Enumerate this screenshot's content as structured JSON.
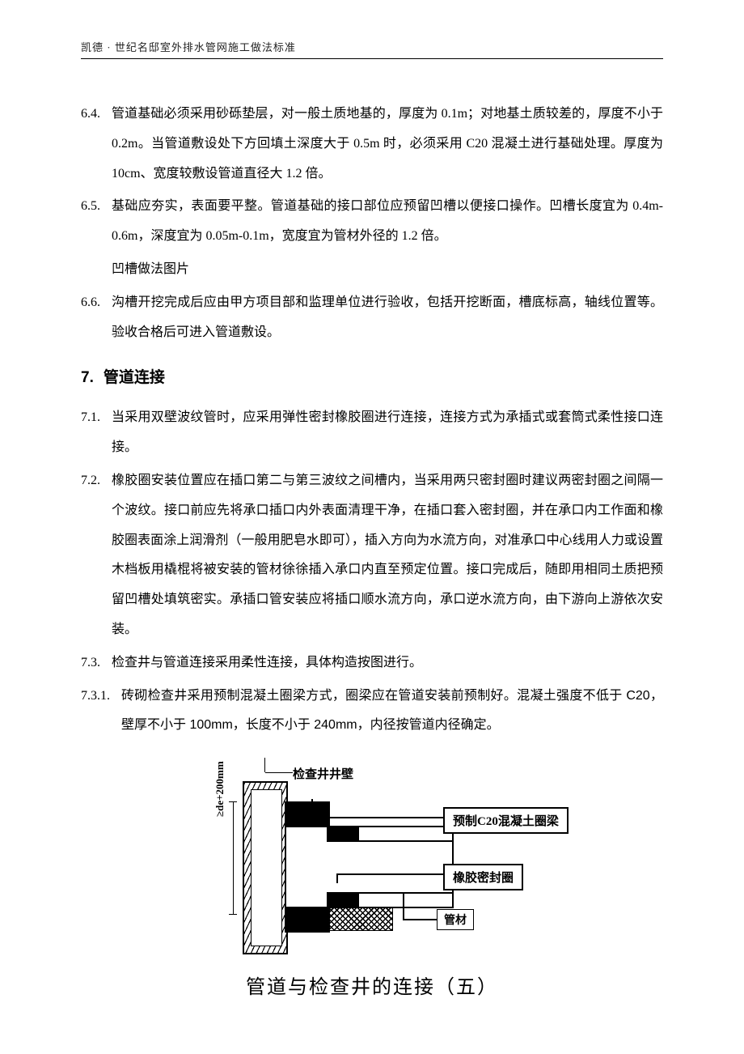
{
  "header": "凯德 · 世纪名邸室外排水管网施工做法标准",
  "items": {
    "i64": {
      "num": "6.4.",
      "text": "管道基础必须采用砂砾垫层，对一般土质地基的，厚度为 0.1m；对地基土质较差的，厚度不小于 0.2m。当管道敷设处下方回填土深度大于 0.5m 时，必须采用 C20 混凝土进行基础处理。厚度为 10cm、宽度较敷设管道直径大 1.2 倍。"
    },
    "i65": {
      "num": "6.5.",
      "text": "基础应夯实，表面要平整。管道基础的接口部位应预留凹槽以便接口操作。凹槽长度宜为 0.4m-0.6m，深度宜为 0.05m-0.1m，宽度宜为管材外径的 1.2 倍。"
    },
    "i65b": "凹槽做法图片",
    "i66": {
      "num": "6.6.",
      "text": "沟槽开挖完成后应由甲方项目部和监理单位进行验收，包括开挖断面，槽底标高，轴线位置等。验收合格后可进入管道敷设。"
    }
  },
  "section7": {
    "num": "7.",
    "title": "管道连接"
  },
  "s7": {
    "i71": {
      "num": "7.1.",
      "text": "当采用双壁波纹管时，应采用弹性密封橡胶圈进行连接，连接方式为承插式或套筒式柔性接口连接。"
    },
    "i72": {
      "num": "7.2.",
      "text": "橡胶圈安装位置应在插口第二与第三波纹之间槽内，当采用两只密封圈时建议两密封圈之间隔一个波纹。接口前应先将承口插口内外表面清理干净，在插口套入密封圈，并在承口内工作面和橡胶圈表面涂上润滑剂（一般用肥皂水即可），插入方向为水流方向，对准承口中心线用人力或设置木档板用橇棍将被安装的管材徐徐插入承口内直至预定位置。接口完成后，随即用相同土质把预留凹槽处填筑密实。承插口管安装应将插口顺水流方向，承口逆水流方向，由下游向上游依次安装。"
    },
    "i73": {
      "num": "7.3.",
      "text": "检查井与管道连接采用柔性连接，具体构造按图进行。"
    },
    "i731": {
      "num": "7.3.1.",
      "text": "砖砌检查井采用预制混凝土圈梁方式，圈梁应在管道安装前预制好。混凝土强度不低于 C20，壁厚不小于 100mm，长度不小于 240mm，内径按管道内径确定。"
    }
  },
  "diagram": {
    "top_label": "检查井井壁",
    "dim_v": "≥de+200mm",
    "lead1": "预制C20混凝土圈梁",
    "lead2": "橡胶密封圈",
    "lead3": "管材",
    "caption": "管道与检查井的连接（五）"
  }
}
